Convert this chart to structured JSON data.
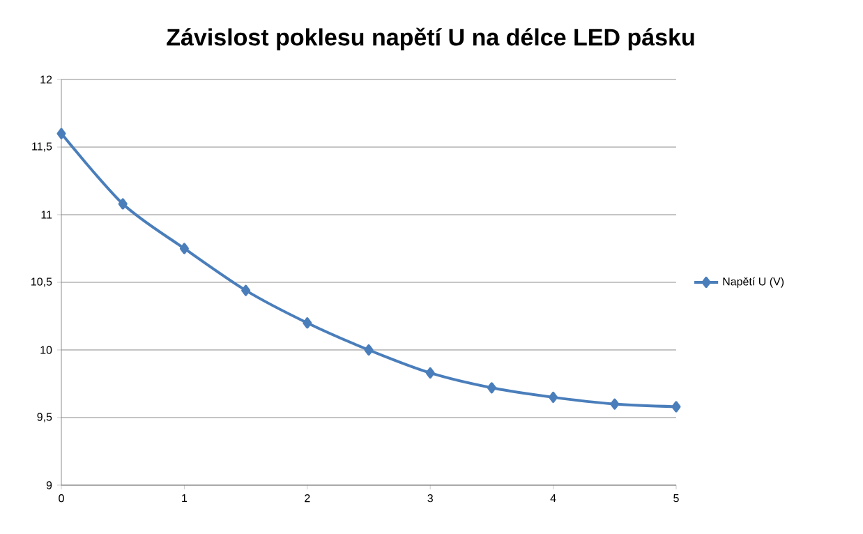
{
  "chart_data": {
    "type": "line",
    "title": "Závislost poklesu napětí U na délce LED pásku",
    "x": [
      0,
      0.5,
      1,
      1.5,
      2,
      2.5,
      3,
      3.5,
      4,
      4.5,
      5
    ],
    "series": [
      {
        "name": "Napětí U (V)",
        "color": "#4a7ebb",
        "values": [
          11.6,
          11.08,
          10.75,
          10.44,
          10.2,
          10.0,
          9.83,
          9.72,
          9.65,
          9.6,
          9.58
        ]
      }
    ],
    "xlim": [
      0,
      5
    ],
    "xticks": [
      0,
      1,
      2,
      3,
      4,
      5
    ],
    "ylim": [
      9,
      12
    ],
    "yticks": [
      9,
      {
        "value": 9.5,
        "label": "9,5"
      },
      10,
      {
        "value": 10.5,
        "label": "10,5"
      },
      11,
      {
        "value": 11.5,
        "label": "11,5"
      },
      12
    ],
    "grid": "y",
    "legend": "right",
    "marker": "diamond",
    "line_style": "solid"
  }
}
